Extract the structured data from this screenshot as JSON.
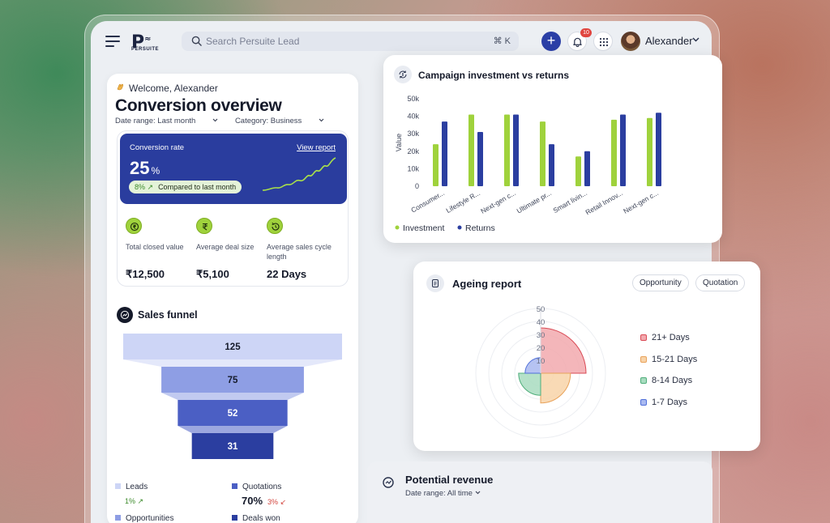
{
  "topbar": {
    "logo_text": "PERSUITE",
    "search_placeholder": "Search Persuite Lead",
    "search_shortcut": "⌘ K",
    "add_label": "+",
    "notification_count": "10",
    "user_name": "Alexander"
  },
  "overview": {
    "welcome": "Welcome, Alexander",
    "title": "Conversion overview",
    "date_range": "Date range: Last month",
    "category": "Category: Business",
    "conversion": {
      "label": "Conversion rate",
      "view_report": "View report",
      "value": "25",
      "unit": "%",
      "change": "8% ↗",
      "change_note": "Compared to last month"
    },
    "kpis": [
      {
        "label": "Total closed value",
        "value": "₹12,500",
        "icon": "rupee-coin-icon"
      },
      {
        "label": "Average deal size",
        "value": "₹5,100",
        "icon": "rupee-icon"
      },
      {
        "label": "Average sales cycle length",
        "value": "22 Days",
        "icon": "cycle-icon"
      }
    ]
  },
  "funnel": {
    "title": "Sales funnel",
    "values": [
      125,
      75,
      52,
      31
    ],
    "labels": [
      "125",
      "75",
      "52",
      "31"
    ],
    "colors": [
      "#cdd5f6",
      "#8e9ee4",
      "#4b5fc4",
      "#2b3ea0"
    ],
    "legend": [
      {
        "label": "Leads",
        "sub": "1% ↗",
        "sub_color": "#3b8a2a",
        "color": "#cdd5f6"
      },
      {
        "label": "Quotations",
        "value": "70%",
        "sub": "3% ↙",
        "sub_color": "#d2443d",
        "color": "#4b5fc4"
      },
      {
        "label": "Opportunities",
        "color": "#8e9ee4"
      },
      {
        "label": "Deals won",
        "color": "#2b3ea0"
      }
    ]
  },
  "chart_data": [
    {
      "type": "bar",
      "title": "Campaign investment vs returns",
      "ylabel": "Value",
      "ylim": [
        0,
        50000
      ],
      "yticks": [
        "0",
        "10k",
        "20k",
        "30k",
        "40k",
        "50k"
      ],
      "categories": [
        "Consumer...",
        "Lifestyle R...",
        "Next-gen c...",
        "Ultimate pr...",
        "Smart livin...",
        "Retail Innov...",
        "Next-gen c..."
      ],
      "series": [
        {
          "name": "Investment",
          "color": "#9fd23c",
          "values": [
            24000,
            41000,
            41000,
            37000,
            17000,
            38000,
            39000
          ]
        },
        {
          "name": "Returns",
          "color": "#2b3ea0",
          "values": [
            37000,
            31000,
            41000,
            24000,
            20000,
            41000,
            42000
          ]
        }
      ],
      "legend": "bottom-left",
      "grid": false
    },
    {
      "type": "pie",
      "subtype": "polar-area",
      "title": "Ageing report",
      "rlim": [
        0,
        50
      ],
      "rticks": [
        "10",
        "20",
        "30",
        "40",
        "50"
      ],
      "categories": [
        "21+ Days",
        "15-21 Days",
        "8-14 Days",
        "1-7 Days"
      ],
      "values": [
        35,
        23,
        17,
        12
      ],
      "colors": [
        "#f2a9ae",
        "#f8d3a8",
        "#a8dcbf",
        "#a9b9f0"
      ],
      "stroke_colors": [
        "#d94a55",
        "#e8a25a",
        "#4fae7b",
        "#4f6fd9"
      ],
      "legend": "right"
    }
  ],
  "ageing": {
    "title": "Ageing report",
    "chips": [
      "Opportunity",
      "Quotation"
    ]
  },
  "campaign": {
    "title": "Campaign investment vs returns"
  },
  "revenue": {
    "title": "Potential revenue",
    "date_range": "Date range: All time"
  }
}
